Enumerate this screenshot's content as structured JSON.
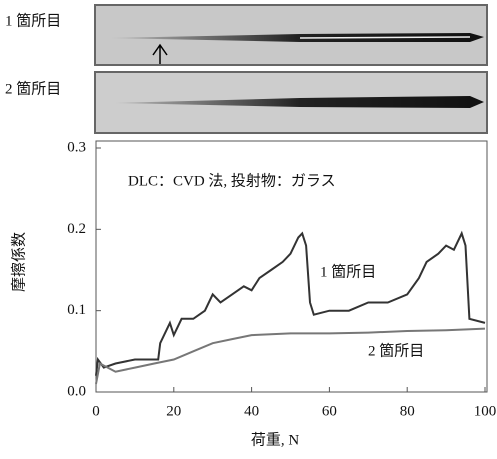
{
  "images": [
    {
      "label": "1 箇所目"
    },
    {
      "label": "2 箇所目"
    }
  ],
  "chart_data": {
    "type": "line",
    "annotation": "DLC：CVD 法, 投射物：ガラス",
    "xlabel": "荷重, N",
    "ylabel": "摩擦係数",
    "xlim": [
      0,
      100
    ],
    "ylim": [
      0,
      0.3
    ],
    "xticks": [
      0,
      20,
      40,
      60,
      80,
      100
    ],
    "yticks": [
      {
        "value": 0,
        "label": "0.0"
      },
      0.1,
      0.2,
      0.3
    ],
    "series": [
      {
        "name": "1 箇所目",
        "color": "#333333",
        "x": [
          0,
          0.5,
          2,
          5,
          10,
          16,
          16.5,
          19,
          20,
          22,
          25,
          28,
          30,
          32,
          35,
          38,
          40,
          42,
          45,
          48,
          50,
          52,
          53,
          54,
          55,
          56,
          60,
          65,
          70,
          75,
          80,
          83,
          85,
          88,
          90,
          92,
          94,
          95,
          96,
          100
        ],
        "values": [
          0.02,
          0.04,
          0.03,
          0.035,
          0.04,
          0.04,
          0.06,
          0.085,
          0.07,
          0.09,
          0.09,
          0.1,
          0.12,
          0.11,
          0.12,
          0.13,
          0.125,
          0.14,
          0.15,
          0.16,
          0.17,
          0.19,
          0.195,
          0.18,
          0.11,
          0.095,
          0.1,
          0.1,
          0.11,
          0.11,
          0.12,
          0.14,
          0.16,
          0.17,
          0.18,
          0.175,
          0.195,
          0.18,
          0.09,
          0.085
        ]
      },
      {
        "name": "2 箇所目",
        "color": "#777777",
        "x": [
          0,
          1,
          5,
          10,
          15,
          20,
          25,
          30,
          35,
          40,
          50,
          60,
          70,
          80,
          90,
          100
        ],
        "values": [
          0.01,
          0.035,
          0.025,
          0.03,
          0.035,
          0.04,
          0.05,
          0.06,
          0.065,
          0.07,
          0.072,
          0.072,
          0.073,
          0.075,
          0.076,
          0.078
        ]
      }
    ]
  }
}
